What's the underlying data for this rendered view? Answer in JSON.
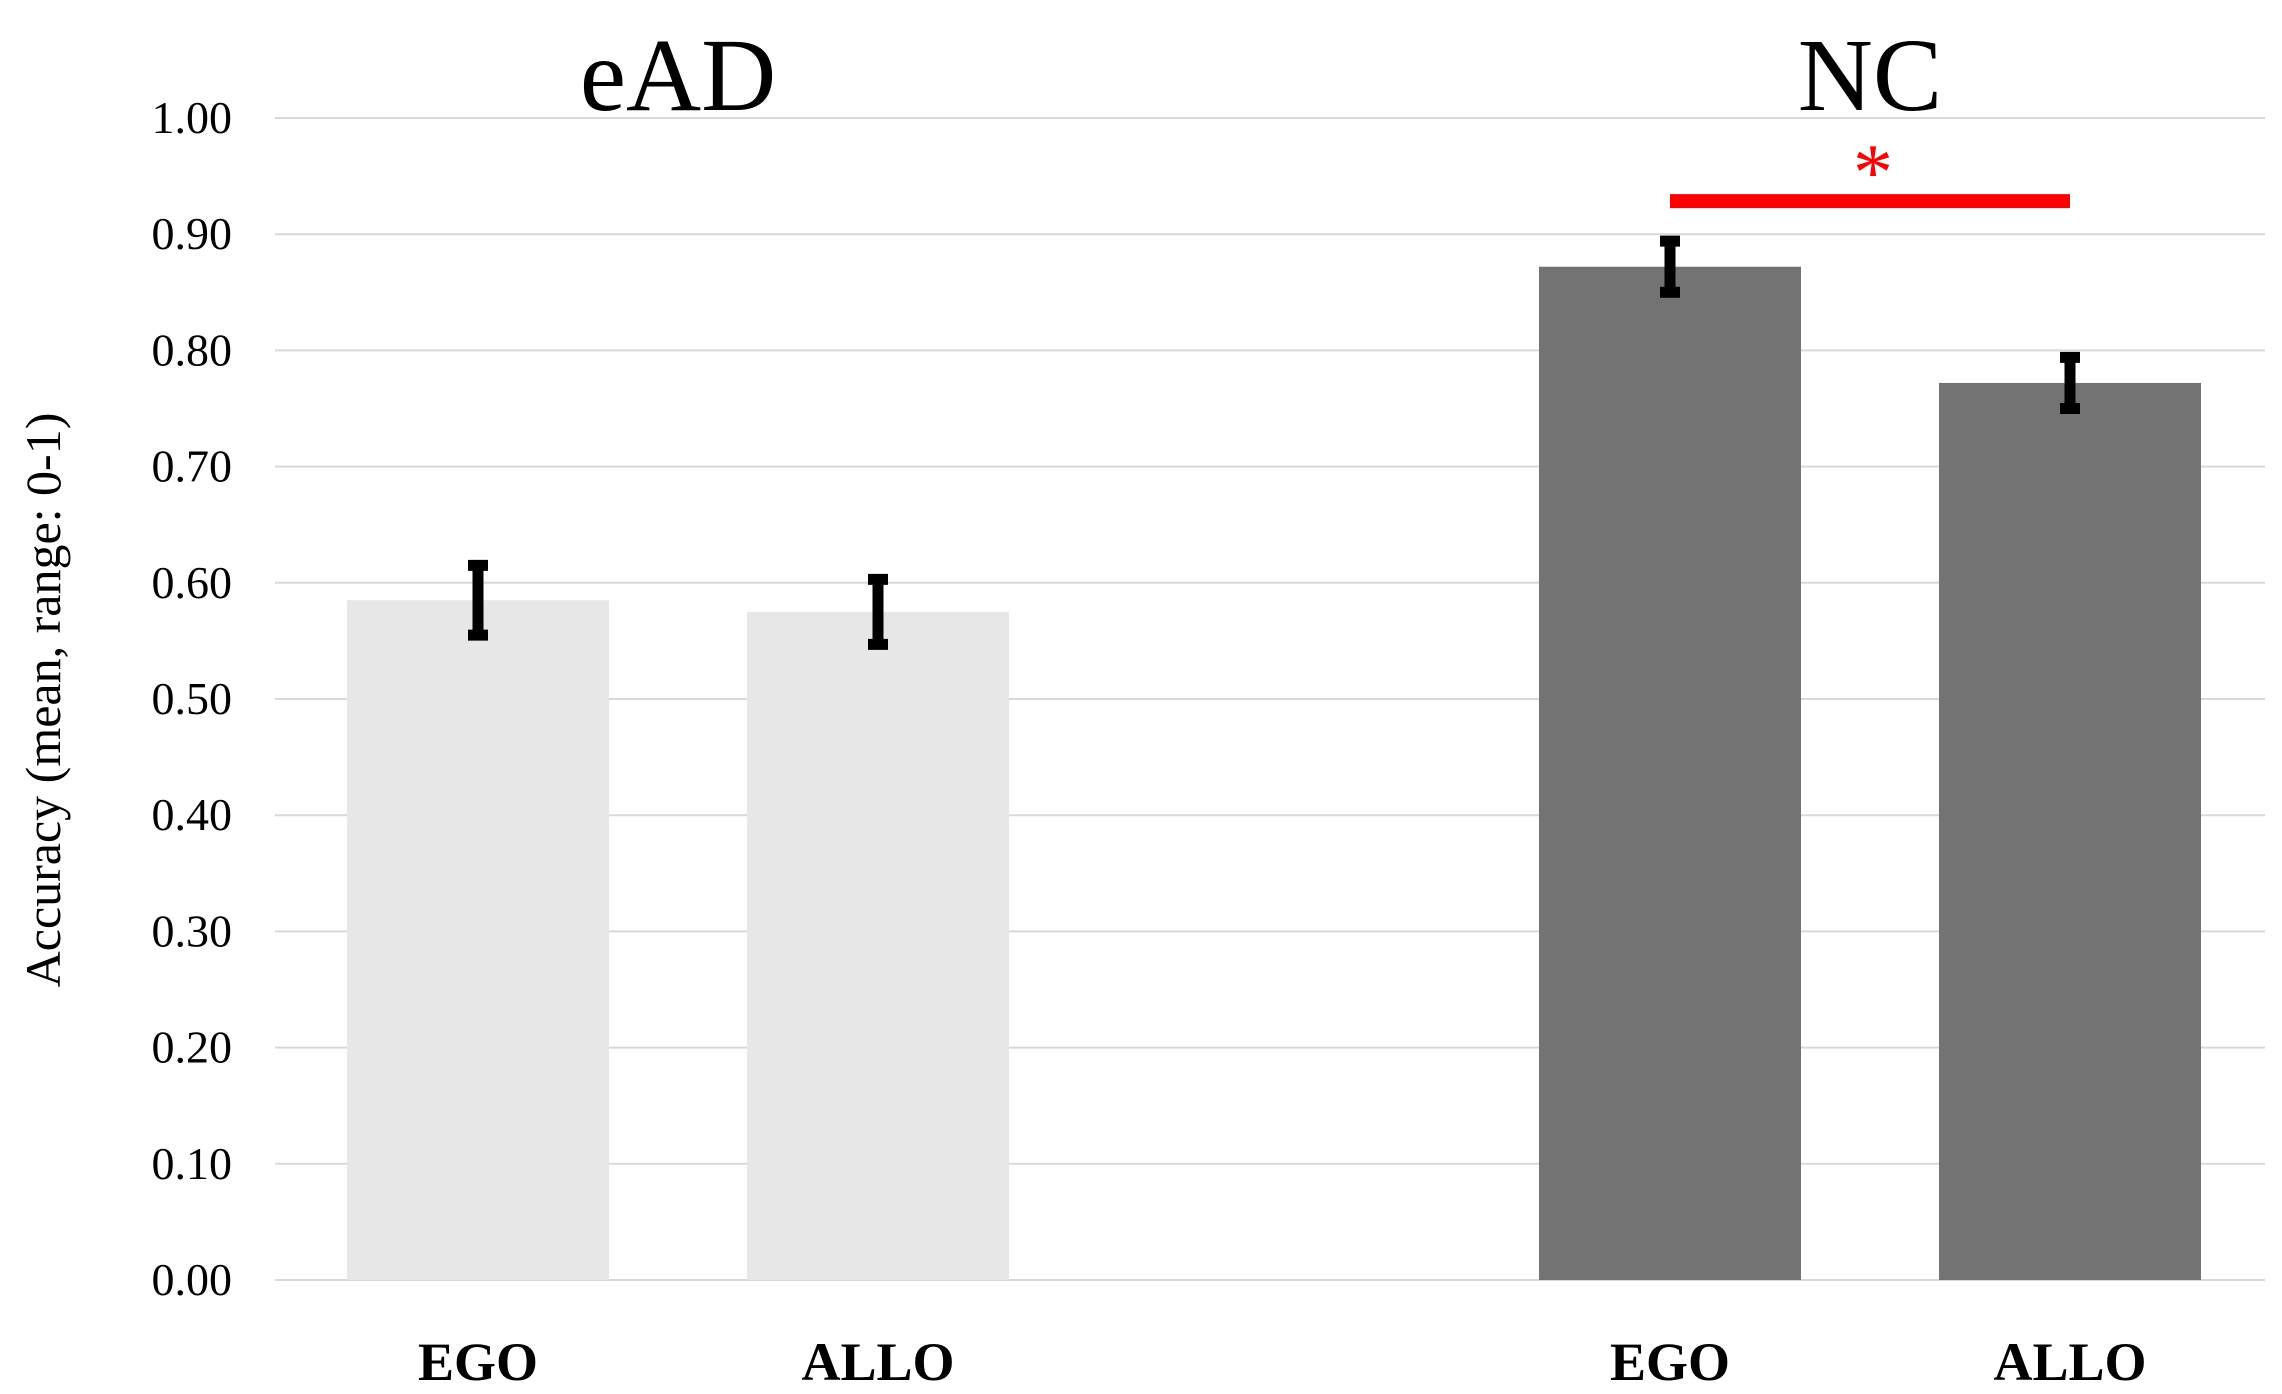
{
  "chart_data": {
    "type": "bar",
    "ylabel": "Accuracy (mean, range: 0-1)",
    "xlabel": "",
    "title": "",
    "ylim": [
      0,
      1
    ],
    "yticks": [
      "0.00",
      "0.10",
      "0.20",
      "0.30",
      "0.40",
      "0.50",
      "0.60",
      "0.70",
      "0.80",
      "0.90",
      "1.00"
    ],
    "grid": true,
    "legend": "none",
    "groups": [
      {
        "label": "eAD",
        "color": "#e7e7e7",
        "bars": [
          {
            "category": "EGO",
            "value": 0.585,
            "error": 0.03
          },
          {
            "category": "ALLO",
            "value": 0.575,
            "error": 0.028
          }
        ]
      },
      {
        "label": "NC",
        "color": "#737373",
        "bars": [
          {
            "category": "EGO",
            "value": 0.872,
            "error": 0.022
          },
          {
            "category": "ALLO",
            "value": 0.772,
            "error": 0.022
          }
        ]
      }
    ],
    "annotations": [
      {
        "type": "significance",
        "group": "NC",
        "label": "*",
        "color": "#ff0000"
      }
    ]
  }
}
